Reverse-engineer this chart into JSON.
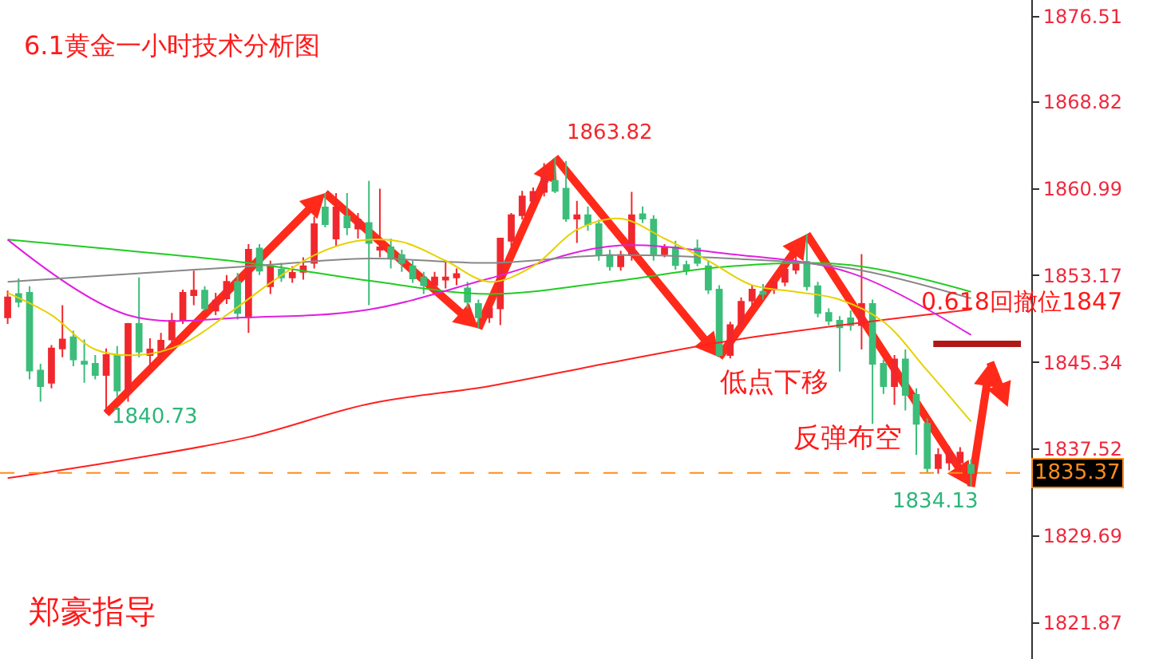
{
  "chart_data": {
    "type": "candlestick",
    "title": "6.1黄金一小时技术分析图",
    "categories": [
      null,
      null,
      null,
      null,
      null,
      null,
      null,
      null,
      null,
      null,
      null,
      null,
      null,
      null,
      null,
      null,
      null,
      null,
      null,
      null,
      null,
      null,
      null,
      null,
      null,
      null,
      null,
      null,
      null,
      null,
      null,
      null,
      null,
      null,
      null,
      null,
      null,
      null,
      null,
      null,
      null,
      null,
      null,
      null,
      null,
      null,
      null,
      null,
      null,
      null,
      null,
      null,
      null,
      null,
      null,
      null,
      null,
      null,
      null,
      null,
      null,
      null,
      null,
      null,
      null,
      null,
      null,
      null,
      null,
      null,
      null,
      null,
      null,
      null,
      null,
      null,
      null,
      null,
      null,
      null,
      null,
      null,
      null,
      null,
      null,
      null,
      null,
      null,
      null
    ],
    "ohlc": [
      [
        1849.4,
        1851.8,
        1848.8,
        1851.2
      ],
      [
        1851.5,
        1852.9,
        1850.3,
        1850.8
      ],
      [
        1851.6,
        1852.2,
        1843.8,
        1844.6
      ],
      [
        1844.6,
        1845.2,
        1841.8,
        1843.2
      ],
      [
        1843.5,
        1846.9,
        1843.0,
        1846.6
      ],
      [
        1846.6,
        1850.5,
        1845.8,
        1847.4
      ],
      [
        1847.6,
        1848.2,
        1845.0,
        1845.6
      ],
      [
        1845.4,
        1847.4,
        1843.5,
        1845.2
      ],
      [
        1845.2,
        1846.0,
        1843.8,
        1844.2
      ],
      [
        1844.2,
        1846.6,
        1840.73,
        1846.0
      ],
      [
        1846.0,
        1846.8,
        1842.2,
        1842.8
      ],
      [
        1842.8,
        1848.9,
        1841.8,
        1848.8
      ],
      [
        1848.8,
        1853.0,
        1845.8,
        1846.3
      ],
      [
        1846.0,
        1847.5,
        1844.5,
        1846.5
      ],
      [
        1846.0,
        1848.0,
        1845.5,
        1847.3
      ],
      [
        1847.4,
        1849.8,
        1847.0,
        1849.1
      ],
      [
        1849.1,
        1851.9,
        1848.8,
        1851.6
      ],
      [
        1851.4,
        1853.6,
        1850.5,
        1851.8
      ],
      [
        1851.8,
        1852.2,
        1850.0,
        1850.2
      ],
      [
        1850.0,
        1851.6,
        1849.6,
        1850.9
      ],
      [
        1851.1,
        1853.2,
        1850.6,
        1852.6
      ],
      [
        1852.6,
        1853.4,
        1849.2,
        1849.8
      ],
      [
        1849.4,
        1856.0,
        1848.0,
        1855.5
      ],
      [
        1855.6,
        1856.0,
        1853.2,
        1853.6
      ],
      [
        1852.2,
        1854.5,
        1851.5,
        1854.0
      ],
      [
        1853.7,
        1854.3,
        1852.6,
        1853.0
      ],
      [
        1853.0,
        1854.0,
        1852.5,
        1853.4
      ],
      [
        1853.5,
        1854.8,
        1852.8,
        1854.0
      ],
      [
        1854.3,
        1858.5,
        1853.8,
        1857.8
      ],
      [
        1859.3,
        1860.6,
        1857.5,
        1857.8
      ],
      [
        1856.5,
        1860.6,
        1855.8,
        1859.3
      ],
      [
        1858.5,
        1860.6,
        1856.8,
        1857.5
      ],
      [
        1857.4,
        1858.8,
        1856.5,
        1858.2
      ],
      [
        1857.9,
        1861.7,
        1850.5,
        1856.1
      ],
      [
        1855.5,
        1861.0,
        1854.8,
        1855.7
      ],
      [
        1855.7,
        1856.5,
        1853.8,
        1854.7
      ],
      [
        1855.0,
        1855.5,
        1853.5,
        1854.3
      ],
      [
        1854.0,
        1854.5,
        1852.5,
        1852.9
      ],
      [
        1853.0,
        1853.5,
        1851.5,
        1852.3
      ],
      [
        1852.3,
        1853.5,
        1851.6,
        1853.0
      ],
      [
        1852.8,
        1854.5,
        1852.0,
        1853.0
      ],
      [
        1853.0,
        1853.8,
        1852.3,
        1853.3
      ],
      [
        1852.0,
        1852.6,
        1850.2,
        1850.8
      ],
      [
        1850.6,
        1851.0,
        1848.4,
        1849.4
      ],
      [
        1849.4,
        1850.6,
        1848.9,
        1850.2
      ],
      [
        1850.2,
        1856.5,
        1848.7,
        1856.5
      ],
      [
        1856.3,
        1858.8,
        1855.8,
        1858.6
      ],
      [
        1858.6,
        1860.8,
        1858.2,
        1860.3
      ],
      [
        1859.9,
        1861.1,
        1859.4,
        1860.7
      ],
      [
        1860.7,
        1863.3,
        1860.3,
        1862.1
      ],
      [
        1861.7,
        1863.82,
        1860.6,
        1860.8
      ],
      [
        1861.0,
        1863.5,
        1858.0,
        1858.3
      ],
      [
        1858.3,
        1859.9,
        1856.1,
        1858.6
      ],
      [
        1858.6,
        1859.4,
        1857.2,
        1857.8
      ],
      [
        1857.8,
        1858.2,
        1854.5,
        1855.0
      ],
      [
        1855.0,
        1855.5,
        1853.6,
        1854.0
      ],
      [
        1854.0,
        1855.4,
        1853.6,
        1855.0
      ],
      [
        1855.0,
        1860.7,
        1854.5,
        1858.6
      ],
      [
        1858.7,
        1859.4,
        1857.9,
        1858.3
      ],
      [
        1858.2,
        1858.6,
        1854.5,
        1855.1
      ],
      [
        1855.1,
        1856.0,
        1854.8,
        1855.7
      ],
      [
        1855.7,
        1856.3,
        1853.7,
        1854.1
      ],
      [
        1854.1,
        1854.5,
        1853.2,
        1853.6
      ],
      [
        1855.6,
        1856.4,
        1854.0,
        1854.3
      ],
      [
        1854.0,
        1854.5,
        1851.5,
        1851.9
      ],
      [
        1851.9,
        1852.3,
        1845.8,
        1846.0
      ],
      [
        1846.0,
        1849.0,
        1845.7,
        1848.7
      ],
      [
        1848.8,
        1851.2,
        1848.3,
        1850.8
      ],
      [
        1850.9,
        1852.3,
        1850.4,
        1851.9
      ],
      [
        1851.7,
        1852.4,
        1851.0,
        1851.5
      ],
      [
        1851.9,
        1853.2,
        1851.5,
        1852.6
      ],
      [
        1852.6,
        1854.4,
        1852.2,
        1853.7
      ],
      [
        1853.7,
        1855.3,
        1853.3,
        1854.4
      ],
      [
        1854.4,
        1856.9,
        1851.8,
        1852.2
      ],
      [
        1852.2,
        1852.6,
        1849.4,
        1849.8
      ],
      [
        1849.8,
        1850.2,
        1848.7,
        1849.1
      ],
      [
        1849.1,
        1849.5,
        1844.5,
        1848.5
      ],
      [
        1849.3,
        1850.0,
        1848.2,
        1848.7
      ],
      [
        1848.7,
        1855.1,
        1846.5,
        1850.6
      ],
      [
        1850.6,
        1851.0,
        1839.8,
        1845.2
      ],
      [
        1845.2,
        1845.6,
        1842.5,
        1843.2
      ],
      [
        1843.2,
        1846.0,
        1841.5,
        1845.6
      ],
      [
        1845.6,
        1846.5,
        1841.0,
        1842.4
      ],
      [
        1842.4,
        1843.0,
        1837.0,
        1839.8
      ],
      [
        1839.8,
        1840.3,
        1835.4,
        1835.8
      ],
      [
        1835.8,
        1837.6,
        1835.3,
        1837.0
      ],
      [
        1836.3,
        1837.8,
        1835.6,
        1837.2
      ],
      [
        1836.3,
        1837.7,
        1835.5,
        1837.2
      ],
      [
        1836.1,
        1836.6,
        1834.13,
        1835.37
      ]
    ],
    "colors": [
      "#f0282d",
      "#3cbd7a",
      "#3cbd7a",
      "#3cbd7a",
      "#f0282d",
      "#f0282d",
      "#3cbd7a",
      "#3cbd7a",
      "#3cbd7a",
      "#f0282d",
      "#3cbd7a",
      "#f0282d",
      "#3cbd7a",
      "#f0282d",
      "#f0282d",
      "#f0282d",
      "#f0282d",
      "#f0282d",
      "#3cbd7a",
      "#f0282d",
      "#f0282d",
      "#3cbd7a",
      "#f0282d",
      "#3cbd7a",
      "#f0282d",
      "#3cbd7a",
      "#f0282d",
      "#f0282d",
      "#f0282d",
      "#3cbd7a",
      "#f0282d",
      "#3cbd7a",
      "#f0282d",
      "#3cbd7a",
      "#f0282d",
      "#3cbd7a",
      "#3cbd7a",
      "#3cbd7a",
      "#3cbd7a",
      "#f0282d",
      "#f0282d",
      "#f0282d",
      "#3cbd7a",
      "#3cbd7a",
      "#f0282d",
      "#f0282d",
      "#f0282d",
      "#f0282d",
      "#f0282d",
      "#f0282d",
      "#3cbd7a",
      "#3cbd7a",
      "#f0282d",
      "#3cbd7a",
      "#3cbd7a",
      "#3cbd7a",
      "#f0282d",
      "#f0282d",
      "#3cbd7a",
      "#3cbd7a",
      "#f0282d",
      "#3cbd7a",
      "#3cbd7a",
      "#3cbd7a",
      "#3cbd7a",
      "#3cbd7a",
      "#f0282d",
      "#f0282d",
      "#f0282d",
      "#3cbd7a",
      "#f0282d",
      "#f0282d",
      "#f0282d",
      "#3cbd7a",
      "#3cbd7a",
      "#3cbd7a",
      "#3cbd7a",
      "#3cbd7a",
      "#f0282d",
      "#3cbd7a",
      "#3cbd7a",
      "#f0282d",
      "#3cbd7a",
      "#3cbd7a",
      "#3cbd7a",
      "#f0282d",
      "#f0282d",
      "#f0282d",
      "#3cbd7a"
    ],
    "series": [
      {
        "type": "line",
        "color": "#ff2020",
        "values": [
          1834.9,
          null,
          null,
          null,
          null,
          null,
          null,
          null,
          null,
          null,
          null,
          1836.6,
          null,
          null,
          null,
          null,
          null,
          null,
          null,
          null,
          null,
          null,
          1838.6,
          null,
          null,
          null,
          null,
          null,
          null,
          null,
          null,
          null,
          null,
          1841.6,
          null,
          null,
          null,
          null,
          null,
          null,
          null,
          null,
          null,
          null,
          1843.2,
          null,
          null,
          null,
          null,
          null,
          null,
          null,
          null,
          null,
          null,
          1845.3,
          null,
          null,
          null,
          null,
          null,
          null,
          null,
          null,
          null,
          null,
          1847.3,
          null,
          null,
          null,
          null,
          null,
          null,
          null,
          null,
          null,
          null,
          1848.8,
          null,
          null,
          null,
          null,
          null,
          null,
          null,
          null,
          null,
          null,
          1850.1
        ]
      },
      {
        "type": "line",
        "color": "#22cc22",
        "values": [
          1856.4,
          null,
          null,
          null,
          null,
          null,
          null,
          null,
          null,
          null,
          null,
          1855.4,
          null,
          null,
          null,
          null,
          null,
          null,
          null,
          null,
          null,
          null,
          1854.3,
          null,
          null,
          null,
          null,
          null,
          null,
          null,
          null,
          null,
          null,
          1852.7,
          null,
          null,
          null,
          null,
          null,
          null,
          null,
          null,
          null,
          null,
          1851.5,
          null,
          null,
          null,
          null,
          null,
          null,
          null,
          null,
          null,
          null,
          1852.6,
          null,
          null,
          null,
          null,
          null,
          null,
          null,
          null,
          null,
          null,
          1854.0,
          null,
          null,
          null,
          null,
          null,
          null,
          null,
          null,
          null,
          null,
          1854.1,
          null,
          null,
          null,
          null,
          null,
          null,
          null,
          null,
          null,
          null,
          1851.7
        ]
      },
      {
        "type": "line",
        "color": "#e020e0",
        "values": [
          1856.4,
          null,
          null,
          null,
          null,
          null,
          null,
          null,
          null,
          null,
          null,
          1849.6,
          null,
          null,
          null,
          null,
          null,
          null,
          null,
          null,
          null,
          null,
          1849.4,
          null,
          null,
          null,
          null,
          null,
          null,
          null,
          null,
          null,
          null,
          1850.1,
          null,
          null,
          null,
          null,
          null,
          null,
          null,
          null,
          null,
          null,
          1852.9,
          null,
          null,
          null,
          null,
          null,
          null,
          null,
          null,
          null,
          null,
          1855.8,
          null,
          null,
          null,
          null,
          null,
          null,
          null,
          null,
          null,
          null,
          1855.1,
          null,
          null,
          null,
          null,
          null,
          null,
          null,
          null,
          null,
          null,
          1853.4,
          null,
          null,
          null,
          null,
          null,
          null,
          null,
          null,
          null,
          null,
          1847.8
        ]
      },
      {
        "type": "line",
        "color": "#888888",
        "values": [
          1852.6,
          null,
          null,
          null,
          null,
          null,
          null,
          null,
          null,
          null,
          null,
          1853.3,
          null,
          null,
          null,
          null,
          null,
          null,
          null,
          null,
          null,
          null,
          1854.0,
          null,
          null,
          null,
          null,
          null,
          null,
          null,
          null,
          null,
          null,
          1854.7,
          null,
          null,
          null,
          null,
          null,
          null,
          null,
          null,
          null,
          null,
          1854.3,
          null,
          null,
          null,
          null,
          null,
          null,
          null,
          null,
          null,
          null,
          1855.0,
          null,
          null,
          null,
          null,
          null,
          null,
          null,
          null,
          null,
          null,
          1854.7,
          null,
          null,
          null,
          null,
          null,
          null,
          null,
          null,
          null,
          null,
          1853.8,
          null,
          null,
          null,
          null,
          null,
          null,
          null,
          null,
          null,
          null,
          1851.1
        ]
      },
      {
        "type": "line",
        "color": "#e6d200",
        "values": [
          1851.6,
          null,
          null,
          null,
          1849.6,
          null,
          null,
          null,
          1846.5,
          null,
          null,
          null,
          1846.0,
          null,
          null,
          null,
          1847.0,
          null,
          null,
          null,
          1849.6,
          null,
          null,
          null,
          1852.5,
          null,
          null,
          null,
          1855.0,
          null,
          null,
          null,
          1856.3,
          null,
          null,
          null,
          1856.2,
          null,
          null,
          null,
          1854.5,
          null,
          null,
          null,
          1852.6,
          null,
          null,
          null,
          1854.0,
          null,
          null,
          null,
          1857.3,
          null,
          null,
          null,
          1858.3,
          null,
          null,
          null,
          1856.5,
          null,
          null,
          null,
          1854.5,
          null,
          null,
          null,
          1852.3,
          null,
          null,
          null,
          1851.7,
          null,
          null,
          null,
          1851.0,
          null,
          null,
          null,
          1849.0,
          null,
          null,
          null,
          1844.6,
          null,
          null,
          null,
          1840.0
        ]
      }
    ],
    "ylim": [
      1818.6,
      1878
    ],
    "yticks": [
      1821.87,
      1829.69,
      1837.52,
      1845.34,
      1853.17,
      1860.99,
      1868.82,
      1876.51
    ],
    "ref_lines": [
      {
        "axis": "y",
        "value": 1847,
        "label": "0.618回撤位1847",
        "color": "#b01818"
      },
      {
        "axis": "y",
        "value": 1835.37,
        "label": "1835.37",
        "color": "#ff8c1a",
        "line_style": "dashed"
      }
    ],
    "annotations": [
      "1840.73",
      "1863.82",
      "1834.13",
      "低点下移",
      "反弹布空",
      "郑豪指导"
    ]
  }
}
